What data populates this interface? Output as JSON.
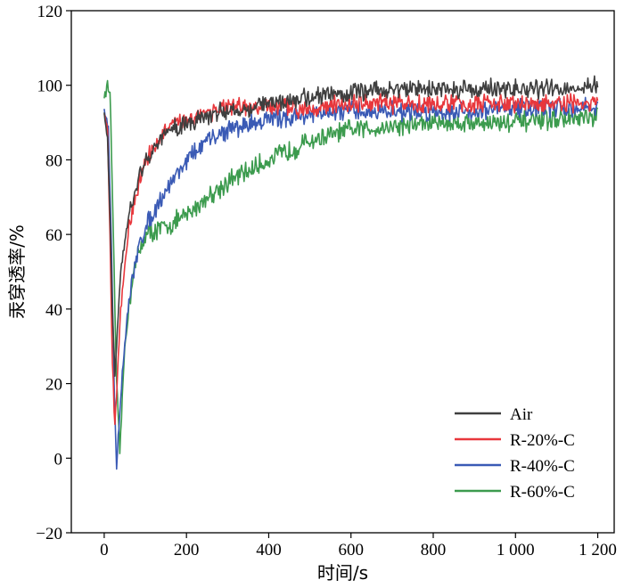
{
  "chart_data": {
    "type": "line",
    "title": "",
    "xlabel": "时间/s",
    "ylabel": "汞穿透率/%",
    "xlim": [
      -80,
      1240
    ],
    "ylim": [
      -20,
      120
    ],
    "x_ticks": [
      0,
      200,
      400,
      600,
      800,
      1000,
      1200
    ],
    "x_tick_labels": [
      "0",
      "200",
      "400",
      "600",
      "800",
      "1 000",
      "1 200"
    ],
    "y_ticks": [
      -20,
      0,
      20,
      40,
      60,
      80,
      100,
      120
    ],
    "y_tick_labels": [
      "−20",
      "0",
      "20",
      "40",
      "60",
      "80",
      "100",
      "120"
    ],
    "grid": false,
    "legend_position": "bottom-right",
    "series": [
      {
        "name": "Air",
        "color": "#3f3f3f",
        "noise": 2.0,
        "x": [
          0,
          8,
          14,
          20,
          26,
          40,
          60,
          80,
          100,
          150,
          200,
          250,
          300,
          400,
          500,
          600,
          700,
          800,
          900,
          1000,
          1100,
          1200
        ],
        "y": [
          93,
          85,
          65,
          40,
          22,
          50,
          65,
          73,
          80,
          87,
          90,
          92,
          93,
          95,
          97,
          98,
          99,
          99,
          99,
          99,
          99,
          100
        ]
      },
      {
        "name": "R-20%-C",
        "color": "#e8373c",
        "noise": 2.0,
        "x": [
          0,
          8,
          14,
          20,
          26,
          40,
          60,
          80,
          100,
          150,
          200,
          250,
          300,
          400,
          500,
          600,
          700,
          800,
          900,
          1000,
          1100,
          1200
        ],
        "y": [
          93,
          88,
          60,
          25,
          8,
          40,
          62,
          72,
          80,
          88,
          91,
          93,
          94,
          94,
          94,
          95,
          95,
          95,
          95,
          95,
          95,
          95
        ]
      },
      {
        "name": "R-40%-C",
        "color": "#3a5ab5",
        "noise": 2.0,
        "x": [
          0,
          10,
          18,
          25,
          30,
          45,
          60,
          80,
          100,
          150,
          200,
          250,
          300,
          400,
          500,
          600,
          700,
          800,
          900,
          1000,
          1100,
          1200
        ],
        "y": [
          94,
          88,
          55,
          15,
          -2,
          25,
          42,
          55,
          62,
          72,
          80,
          85,
          88,
          91,
          92,
          93,
          93,
          93,
          93,
          94,
          94,
          94
        ]
      },
      {
        "name": "R-60%-C",
        "color": "#3c9b4e",
        "noise": 2.2,
        "x": [
          0,
          8,
          15,
          22,
          30,
          38,
          50,
          70,
          100,
          150,
          200,
          250,
          300,
          400,
          500,
          600,
          700,
          800,
          900,
          1000,
          1100,
          1200
        ],
        "y": [
          97,
          100,
          97,
          60,
          20,
          2,
          30,
          50,
          60,
          62,
          65,
          70,
          74,
          80,
          85,
          88,
          89,
          90,
          90,
          90,
          91,
          91
        ]
      }
    ]
  }
}
